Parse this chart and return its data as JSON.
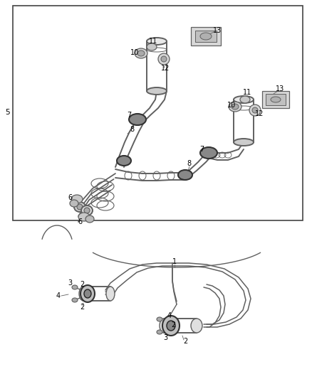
{
  "bg_color": "#ffffff",
  "line_color": "#606060",
  "label_color": "#000000",
  "fig_width": 4.38,
  "fig_height": 5.33,
  "dpi": 100
}
